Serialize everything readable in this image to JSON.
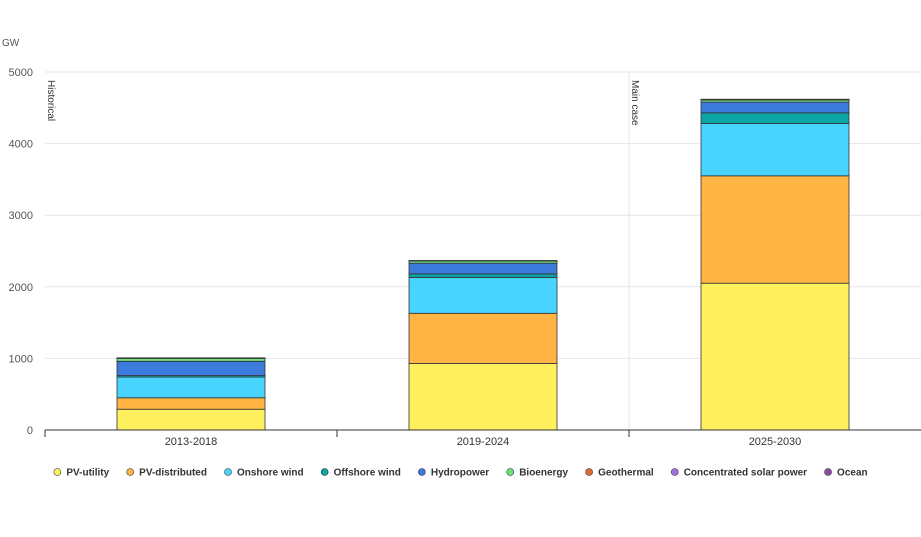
{
  "chart_data": {
    "type": "bar",
    "stacked": true,
    "unit_label": "GW",
    "categories": [
      "2013-2018",
      "2019-2024",
      "2025-2030"
    ],
    "ylim": [
      0,
      5000
    ],
    "yticks": [
      "0",
      "1000",
      "2000",
      "3000",
      "4000",
      "5000"
    ],
    "grid": true,
    "legend_position": "bottom",
    "sections": [
      {
        "label": "Historical",
        "start_category": 0
      },
      {
        "label": "Main case",
        "start_category": 2
      }
    ],
    "series": [
      {
        "name": "PV-utility",
        "color": "#fff15e",
        "values": [
          290,
          930,
          2050
        ]
      },
      {
        "name": "PV-distributed",
        "color": "#ffb443",
        "values": [
          160,
          700,
          1500
        ]
      },
      {
        "name": "Onshore wind",
        "color": "#49d3ff",
        "values": [
          290,
          500,
          730
        ]
      },
      {
        "name": "Offshore wind",
        "color": "#0ba5a5",
        "values": [
          20,
          50,
          150
        ]
      },
      {
        "name": "Hydropower",
        "color": "#3c7adc",
        "values": [
          200,
          150,
          150
        ]
      },
      {
        "name": "Bioenergy",
        "color": "#6ee07c",
        "values": [
          40,
          30,
          30
        ]
      },
      {
        "name": "Geothermal",
        "color": "#e2683c",
        "values": [
          5,
          5,
          5
        ]
      },
      {
        "name": "Concentrated solar power",
        "color": "#a173e0",
        "values": [
          3,
          2,
          5
        ]
      },
      {
        "name": "Ocean",
        "color": "#8b4aa8",
        "values": [
          0,
          0,
          0
        ]
      }
    ]
  }
}
